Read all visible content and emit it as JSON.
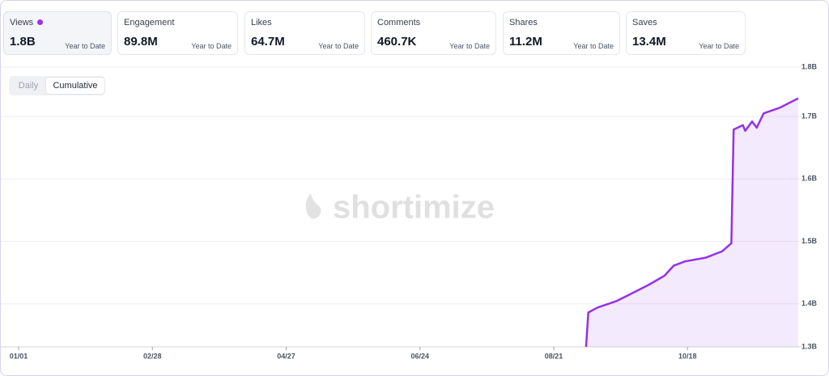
{
  "cards": [
    {
      "label": "Views",
      "value": "1.8B",
      "period": "Year to Date"
    },
    {
      "label": "Engagement",
      "value": "89.8M",
      "period": "Year to Date"
    },
    {
      "label": "Likes",
      "value": "64.7M",
      "period": "Year to Date"
    },
    {
      "label": "Comments",
      "value": "460.7K",
      "period": "Year to Date"
    },
    {
      "label": "Shares",
      "value": "11.2M",
      "period": "Year to Date"
    },
    {
      "label": "Saves",
      "value": "13.4M",
      "period": "Year to Date"
    }
  ],
  "toggle": {
    "options": [
      "Daily",
      "Cumulative"
    ]
  },
  "watermark": "shortimize",
  "chart_data": {
    "type": "area",
    "color": "#9333ea",
    "grid": true,
    "x": [
      246,
      247,
      251,
      259,
      266,
      273,
      280,
      284,
      289,
      298,
      305,
      309,
      310,
      314,
      315,
      318,
      320,
      323,
      330,
      338
    ],
    "values": [
      1.331,
      1.386,
      1.394,
      1.404,
      1.417,
      1.43,
      1.445,
      1.461,
      1.468,
      1.474,
      1.484,
      1.497,
      1.679,
      1.686,
      1.677,
      1.692,
      1.682,
      1.705,
      1.714,
      1.729
    ],
    "xlim": [
      0,
      338
    ],
    "xticks": [
      {
        "value": 0,
        "label": "01/01"
      },
      {
        "value": 58,
        "label": "02/28"
      },
      {
        "value": 116,
        "label": "04/27"
      },
      {
        "value": 174,
        "label": "06/24"
      },
      {
        "value": 232,
        "label": "08/21"
      },
      {
        "value": 290,
        "label": "10/18"
      }
    ],
    "ylim": [
      1.331,
      1.779
    ],
    "yticks": [
      {
        "value": 1.331,
        "label": "1.3B"
      },
      {
        "value": 1.4,
        "label": "1.4B"
      },
      {
        "value": 1.5,
        "label": "1.5B"
      },
      {
        "value": 1.6,
        "label": "1.6B"
      },
      {
        "value": 1.7,
        "label": "1.7B"
      },
      {
        "value": 1.779,
        "label": "1.8B"
      }
    ]
  }
}
